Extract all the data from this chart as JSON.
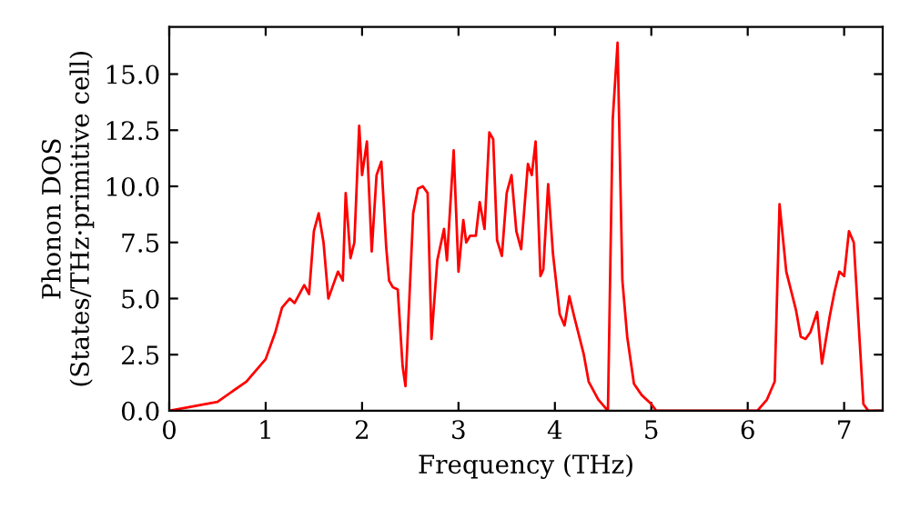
{
  "chart_data": {
    "type": "line",
    "xlabel": "Frequency (THz)",
    "ylabel": "Phonon DOS\n(States/THz·primitive cell)",
    "xlim": [
      0,
      7.4
    ],
    "ylim": [
      0,
      17.1
    ],
    "xticks": [
      0,
      1,
      2,
      3,
      4,
      5,
      6,
      7
    ],
    "yticks": [
      {
        "value": 0,
        "label": "0.0"
      },
      {
        "value": 2.5,
        "label": "2.5"
      },
      {
        "value": 5,
        "label": "5.0"
      },
      {
        "value": 7.5,
        "label": "7.5"
      },
      {
        "value": 10,
        "label": "10.0"
      },
      {
        "value": 12.5,
        "label": "12.5"
      },
      {
        "value": 15,
        "label": "15.0"
      }
    ],
    "grid": false,
    "marker": "none",
    "line_style": "solid",
    "series": [
      {
        "color": "#ff0000",
        "x": [
          0,
          0.5,
          0.8,
          1.0,
          1.1,
          1.17,
          1.25,
          1.3,
          1.4,
          1.45,
          1.5,
          1.55,
          1.6,
          1.65,
          1.7,
          1.75,
          1.8,
          1.83,
          1.88,
          1.92,
          1.97,
          2.0,
          2.05,
          2.1,
          2.15,
          2.2,
          2.25,
          2.28,
          2.32,
          2.37,
          2.42,
          2.45,
          2.53,
          2.58,
          2.63,
          2.68,
          2.72,
          2.78,
          2.85,
          2.88,
          2.95,
          3.0,
          3.05,
          3.08,
          3.12,
          3.18,
          3.22,
          3.27,
          3.32,
          3.36,
          3.4,
          3.45,
          3.5,
          3.55,
          3.6,
          3.65,
          3.72,
          3.76,
          3.8,
          3.85,
          3.88,
          3.93,
          3.98,
          4.05,
          4.1,
          4.15,
          4.2,
          4.3,
          4.35,
          4.45,
          4.55,
          4.6,
          4.65,
          4.7,
          4.75,
          4.82,
          4.9,
          5.0,
          5.05,
          6.1,
          6.2,
          6.28,
          6.33,
          6.4,
          6.5,
          6.55,
          6.6,
          6.65,
          6.72,
          6.77,
          6.85,
          6.9,
          6.95,
          7.0,
          7.05,
          7.1,
          7.2,
          7.25,
          7.4
        ],
        "values": [
          0,
          0.4,
          1.3,
          2.3,
          3.5,
          4.6,
          5.0,
          4.8,
          5.6,
          5.2,
          8.0,
          8.8,
          7.5,
          5.0,
          5.6,
          6.2,
          5.8,
          9.7,
          6.8,
          7.5,
          12.7,
          10.5,
          12.0,
          7.1,
          10.5,
          11.1,
          7.3,
          5.8,
          5.5,
          5.4,
          2.0,
          1.1,
          8.8,
          9.9,
          10.0,
          9.7,
          3.2,
          6.7,
          8.1,
          6.7,
          11.6,
          6.2,
          8.5,
          7.5,
          7.8,
          7.8,
          9.3,
          8.1,
          12.4,
          12.1,
          7.6,
          6.9,
          9.7,
          10.5,
          8.0,
          7.2,
          11.0,
          10.5,
          12.0,
          6.0,
          6.3,
          10.1,
          7.0,
          4.3,
          3.8,
          5.1,
          4.2,
          2.5,
          1.3,
          0.5,
          0.0,
          13.0,
          16.4,
          5.8,
          3.3,
          1.2,
          0.7,
          0.3,
          0,
          0,
          0.5,
          1.3,
          9.2,
          6.2,
          4.5,
          3.3,
          3.2,
          3.5,
          4.4,
          2.1,
          4.2,
          5.3,
          6.2,
          6.0,
          8.0,
          7.5,
          0.3,
          0,
          0
        ]
      }
    ]
  }
}
